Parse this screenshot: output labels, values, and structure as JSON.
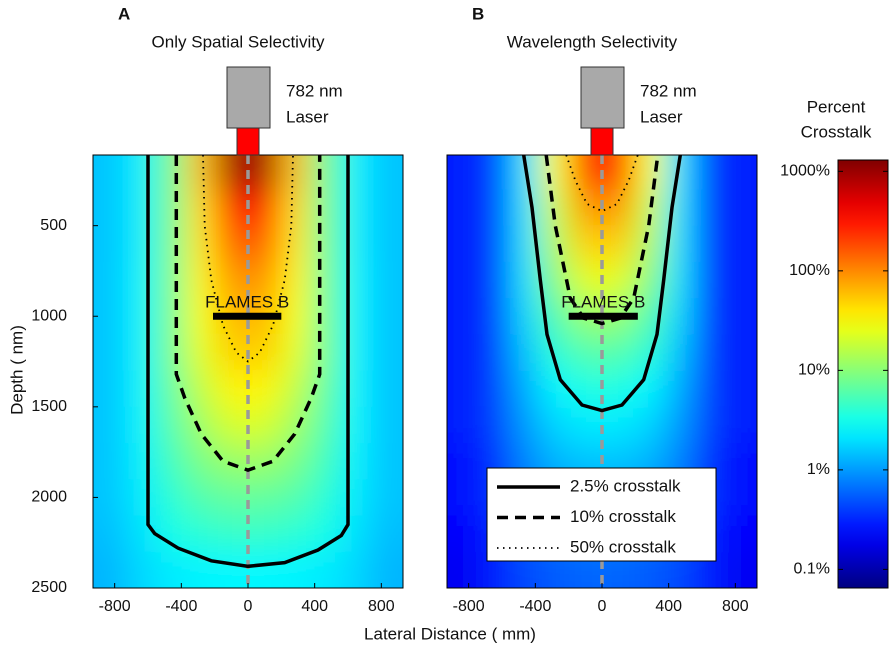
{
  "chart_data": [
    {
      "type": "heatmap",
      "panel_label": "A",
      "title": "Only Spatial Selectivity",
      "laser_label": [
        "782 nm",
        "Laser"
      ],
      "xlim": [
        -930,
        930
      ],
      "ylim": [
        2500,
        110
      ],
      "xticks": [
        -800,
        -400,
        0,
        400,
        800
      ],
      "yticks": [
        500,
        1000,
        1500,
        2000,
        2500
      ],
      "x": [
        -837,
        -651,
        -465,
        -279,
        -93,
        93,
        279,
        465,
        651,
        837
      ],
      "y": [
        200,
        400,
        600,
        800,
        1000,
        1200,
        1400,
        1600,
        1800,
        2000,
        2200,
        2400
      ],
      "z": [
        [
          1.5,
          2.3,
          8,
          60,
          900,
          900,
          60,
          8,
          2.3,
          1.5
        ],
        [
          1.5,
          2.3,
          8,
          45,
          300,
          300,
          45,
          8,
          2.3,
          1.5
        ],
        [
          1.5,
          2.3,
          8,
          40,
          150,
          150,
          40,
          8,
          2.3,
          1.5
        ],
        [
          1.5,
          2.4,
          8,
          35,
          90,
          90,
          35,
          8,
          2.4,
          1.5
        ],
        [
          1.5,
          2.4,
          8,
          30,
          65,
          65,
          30,
          8,
          2.4,
          1.5
        ],
        [
          1.5,
          2.4,
          8,
          25,
          50,
          50,
          25,
          8,
          2.4,
          1.5
        ],
        [
          1.5,
          2.4,
          7,
          18,
          35,
          35,
          18,
          7,
          2.4,
          1.5
        ],
        [
          1.5,
          2.4,
          6,
          13,
          22,
          22,
          13,
          6,
          2.4,
          1.5
        ],
        [
          1.5,
          2.3,
          5,
          9,
          12,
          12,
          9,
          5,
          2.3,
          1.5
        ],
        [
          1.5,
          2.2,
          4,
          6,
          7,
          7,
          6,
          4,
          2.2,
          1.5
        ],
        [
          1.4,
          2.0,
          3.3,
          4,
          4.5,
          4.5,
          4,
          3.3,
          2.0,
          1.4
        ],
        [
          1.3,
          1.8,
          2.2,
          2.4,
          2.5,
          2.5,
          2.4,
          2.2,
          1.8,
          1.3
        ]
      ],
      "contours": [
        {
          "style": "solid",
          "x": [
            -600,
            -600,
            -560,
            -420,
            -220,
            0,
            220,
            420,
            560,
            600,
            600
          ],
          "y": [
            110,
            2150,
            2200,
            2280,
            2350,
            2380,
            2360,
            2290,
            2210,
            2150,
            110
          ]
        },
        {
          "style": "dashed",
          "x": [
            -430,
            -430,
            -380,
            -280,
            -150,
            0,
            150,
            280,
            380,
            430,
            430
          ],
          "y": [
            110,
            1320,
            1450,
            1650,
            1800,
            1850,
            1800,
            1650,
            1450,
            1320,
            110
          ]
        },
        {
          "style": "dotted",
          "x": [
            -270,
            -260,
            -220,
            -150,
            -70,
            0,
            70,
            150,
            220,
            260,
            270
          ],
          "y": [
            110,
            500,
            800,
            1050,
            1200,
            1250,
            1200,
            1050,
            800,
            500,
            110
          ]
        }
      ],
      "target": {
        "label": "FLAMES B",
        "x": [
          -210,
          200
        ],
        "y": 1000
      }
    },
    {
      "type": "heatmap",
      "panel_label": "B",
      "title": "Wavelength Selectivity",
      "laser_label": [
        "782 nm",
        "Laser"
      ],
      "xlim": [
        -930,
        930
      ],
      "ylim": [
        2500,
        110
      ],
      "xticks": [
        -800,
        -400,
        0,
        400,
        800
      ],
      "x": [
        -837,
        -651,
        -465,
        -279,
        -93,
        93,
        279,
        465,
        651,
        837
      ],
      "y": [
        200,
        400,
        600,
        800,
        1000,
        1200,
        1400,
        1600,
        1800,
        2000,
        2200,
        2400
      ],
      "z": [
        [
          0.3,
          0.4,
          2,
          30,
          250,
          250,
          30,
          2,
          0.4,
          0.3
        ],
        [
          0.3,
          0.4,
          2,
          20,
          90,
          90,
          20,
          2,
          0.4,
          0.3
        ],
        [
          0.3,
          0.4,
          2,
          15,
          50,
          50,
          15,
          2,
          0.4,
          0.3
        ],
        [
          0.3,
          0.4,
          2,
          10,
          25,
          25,
          10,
          2,
          0.4,
          0.3
        ],
        [
          0.3,
          0.4,
          1.8,
          6,
          12,
          12,
          6,
          1.8,
          0.4,
          0.3
        ],
        [
          0.3,
          0.4,
          1.5,
          4,
          6,
          6,
          4,
          1.5,
          0.4,
          0.3
        ],
        [
          0.3,
          0.4,
          1.2,
          2.5,
          3.5,
          3.5,
          2.5,
          1.2,
          0.4,
          0.3
        ],
        [
          0.3,
          0.4,
          1,
          1.8,
          2.2,
          2.2,
          1.8,
          1,
          0.4,
          0.3
        ],
        [
          0.25,
          0.35,
          0.8,
          1.3,
          1.5,
          1.5,
          1.3,
          0.8,
          0.35,
          0.25
        ],
        [
          0.25,
          0.35,
          0.7,
          1,
          1.1,
          1.1,
          1,
          0.7,
          0.35,
          0.25
        ],
        [
          0.22,
          0.3,
          0.55,
          0.7,
          0.8,
          0.8,
          0.7,
          0.55,
          0.3,
          0.22
        ],
        [
          0.2,
          0.3,
          0.45,
          0.55,
          0.6,
          0.6,
          0.55,
          0.45,
          0.3,
          0.2
        ]
      ],
      "contours": [
        {
          "name": "2.5% crosstalk",
          "style": "solid",
          "x": [
            -470,
            -420,
            -370,
            -330,
            -250,
            -120,
            0,
            120,
            250,
            330,
            370,
            420,
            470
          ],
          "y": [
            110,
            400,
            800,
            1100,
            1350,
            1490,
            1520,
            1490,
            1350,
            1100,
            800,
            400,
            110
          ]
        },
        {
          "name": "10% crosstalk",
          "style": "dashed",
          "x": [
            -335,
            -280,
            -190,
            -110,
            0,
            110,
            190,
            280,
            335
          ],
          "y": [
            110,
            500,
            900,
            1010,
            1040,
            1010,
            900,
            500,
            110
          ]
        },
        {
          "name": "50% crosstalk",
          "style": "dotted",
          "x": [
            -215,
            -160,
            -90,
            0,
            90,
            160,
            215
          ],
          "y": [
            110,
            250,
            380,
            420,
            380,
            250,
            110
          ]
        }
      ],
      "legend": true,
      "target": {
        "label": "FLAMES B",
        "x": [
          -200,
          215
        ],
        "y": 1000
      }
    }
  ],
  "figure": {
    "xlabel": "Lateral Distance (  mm)",
    "ylabel": "Depth ( nm)",
    "colorbar": {
      "title": [
        "Percent",
        "Crosstalk"
      ],
      "scale": "log",
      "clim": [
        0.065,
        1300
      ],
      "colormap": "jet",
      "ticks": [
        {
          "value": 0.1,
          "label": "0.1%"
        },
        {
          "value": 1,
          "label": "1%"
        },
        {
          "value": 10,
          "label": "10%"
        },
        {
          "value": 100,
          "label": "100%"
        },
        {
          "value": 1000,
          "label": "1000%"
        }
      ]
    }
  }
}
